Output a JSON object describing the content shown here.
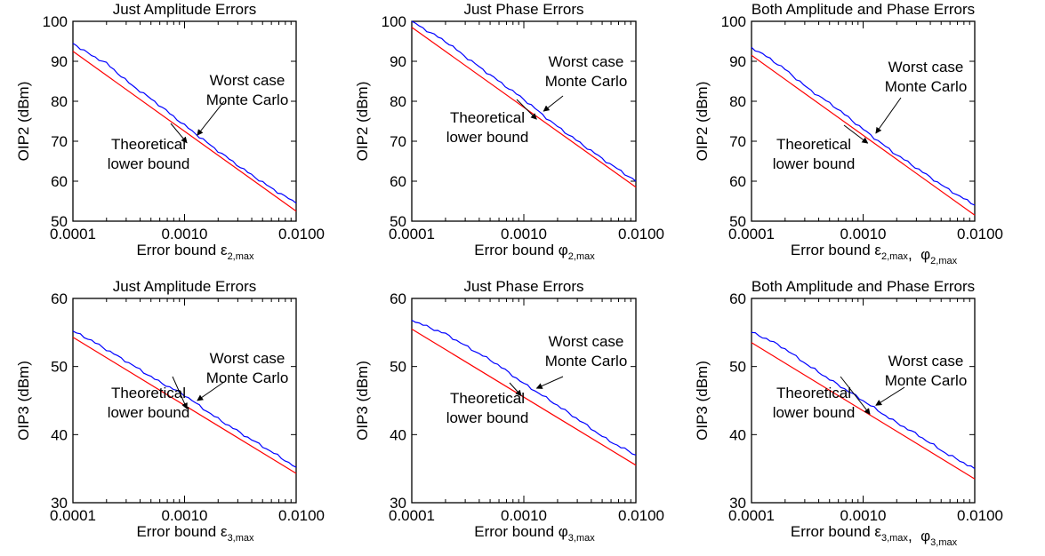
{
  "chart_data": [
    {
      "type": "line",
      "title": "Just Amplitude Errors",
      "xlabel": "Error bound ",
      "xlabel_symbols": [
        "ε"
      ],
      "xlabel_subs": [
        "2,max"
      ],
      "ylabel": "OIP2 (dBm)",
      "xscale": "log",
      "xlim": [
        0.0001,
        0.01
      ],
      "ylim": [
        50,
        100
      ],
      "xticks": [
        0.0001,
        0.001,
        0.01
      ],
      "xtick_labels": [
        "0.0001",
        "0.0010",
        "0.0100"
      ],
      "yticks": [
        50,
        60,
        70,
        80,
        90,
        100
      ],
      "ytick_labels": [
        "50",
        "60",
        "70",
        "80",
        "90",
        "100"
      ],
      "series": [
        {
          "color": "#ff0000",
          "x": [
            0.0001,
            0.01
          ],
          "y": [
            92.5,
            52.5
          ]
        },
        {
          "color": "#0000ff",
          "x": [
            0.0001,
            0.00014,
            0.0002,
            0.00032,
            0.00056,
            0.001,
            0.0018,
            0.0032,
            0.0056,
            0.01
          ],
          "y": [
            94.5,
            91.8,
            89.5,
            84.5,
            79.6,
            74.0,
            68.5,
            63.4,
            58.8,
            54.5
          ]
        }
      ],
      "annotations": [
        {
          "lines": [
            "Worst case",
            "Monte Carlo"
          ],
          "arrow_target": [
            0.0013,
            71.5
          ]
        },
        {
          "lines": [
            "Theoretical",
            "lower bound"
          ],
          "arrow_target": [
            0.00105,
            69.6
          ]
        }
      ]
    },
    {
      "type": "line",
      "title": "Just Phase Errors",
      "xlabel": "Error bound ",
      "xlabel_symbols": [
        "φ"
      ],
      "xlabel_subs": [
        "2,max"
      ],
      "ylabel": "OIP2 (dBm)",
      "xscale": "log",
      "xlim": [
        0.0001,
        0.01
      ],
      "ylim": [
        50,
        100
      ],
      "xticks": [
        0.0001,
        0.001,
        0.01
      ],
      "xtick_labels": [
        "0.0001",
        "0.0010",
        "0.0100"
      ],
      "yticks": [
        50,
        60,
        70,
        80,
        90,
        100
      ],
      "ytick_labels": [
        "50",
        "60",
        "70",
        "80",
        "90",
        "100"
      ],
      "series": [
        {
          "color": "#ff0000",
          "x": [
            0.0001,
            0.01
          ],
          "y": [
            98.5,
            58.5
          ]
        },
        {
          "color": "#0000ff",
          "x": [
            0.0001,
            0.00014,
            0.0002,
            0.00032,
            0.00056,
            0.001,
            0.0018,
            0.0032,
            0.0056,
            0.01
          ],
          "y": [
            100.0,
            97.5,
            95.0,
            90.6,
            85.6,
            80.5,
            74.6,
            69.5,
            64.7,
            60.0
          ]
        }
      ],
      "annotations": [
        {
          "lines": [
            "Worst case",
            "Monte Carlo"
          ],
          "arrow_target": [
            0.0015,
            77.5
          ]
        },
        {
          "lines": [
            "Theoretical",
            "lower bound"
          ],
          "arrow_target": [
            0.0013,
            75.5
          ]
        }
      ]
    },
    {
      "type": "line",
      "title": "Both Amplitude and Phase Errors",
      "xlabel": "Error bound ",
      "xlabel_symbols": [
        "ε",
        "φ"
      ],
      "xlabel_subs": [
        "2,max",
        "2,max"
      ],
      "ylabel": "OIP2 (dBm)",
      "xscale": "log",
      "xlim": [
        0.0001,
        0.01
      ],
      "ylim": [
        50,
        100
      ],
      "xticks": [
        0.0001,
        0.001,
        0.01
      ],
      "xtick_labels": [
        "0.0001",
        "0.0010",
        "0.0100"
      ],
      "yticks": [
        50,
        60,
        70,
        80,
        90,
        100
      ],
      "ytick_labels": [
        "50",
        "60",
        "70",
        "80",
        "90",
        "100"
      ],
      "series": [
        {
          "color": "#ff0000",
          "x": [
            0.0001,
            0.01
          ],
          "y": [
            91.5,
            51.5
          ]
        },
        {
          "color": "#0000ff",
          "x": [
            0.0001,
            0.00014,
            0.0002,
            0.00032,
            0.00056,
            0.001,
            0.0018,
            0.0032,
            0.0056,
            0.01
          ],
          "y": [
            93.5,
            91.0,
            88.0,
            83.2,
            78.6,
            73.0,
            67.5,
            62.8,
            58.2,
            54.0
          ]
        }
      ],
      "annotations": [
        {
          "lines": [
            "Worst case",
            "Monte Carlo"
          ],
          "arrow_target": [
            0.0013,
            72.0
          ]
        },
        {
          "lines": [
            "Theoretical",
            "lower bound"
          ],
          "arrow_target": [
            0.0011,
            69.5
          ]
        }
      ]
    },
    {
      "type": "line",
      "title": "Just Amplitude Errors",
      "xlabel": "Error bound ",
      "xlabel_symbols": [
        "ε"
      ],
      "xlabel_subs": [
        "3,max"
      ],
      "ylabel": "OIP3 (dBm)",
      "xscale": "log",
      "xlim": [
        0.0001,
        0.01
      ],
      "ylim": [
        30,
        60
      ],
      "xticks": [
        0.0001,
        0.001,
        0.01
      ],
      "xtick_labels": [
        "0.0001",
        "0.0010",
        "0.0100"
      ],
      "yticks": [
        30,
        40,
        50,
        60
      ],
      "ytick_labels": [
        "30",
        "40",
        "50",
        "60"
      ],
      "series": [
        {
          "color": "#ff0000",
          "x": [
            0.0001,
            0.01
          ],
          "y": [
            54.3,
            34.3
          ]
        },
        {
          "color": "#0000ff",
          "x": [
            0.0001,
            0.00014,
            0.0002,
            0.00032,
            0.00056,
            0.001,
            0.0018,
            0.0032,
            0.0056,
            0.01
          ],
          "y": [
            55.2,
            54.0,
            52.5,
            50.5,
            48.0,
            45.8,
            42.8,
            40.2,
            37.8,
            35.2
          ]
        }
      ],
      "annotations": [
        {
          "lines": [
            "Worst case",
            "Monte Carlo"
          ],
          "arrow_target": [
            0.0013,
            45.0
          ]
        },
        {
          "lines": [
            "Theoretical",
            "lower bound"
          ],
          "arrow_target": [
            0.00105,
            43.8
          ]
        }
      ]
    },
    {
      "type": "line",
      "title": "Just Phase Errors",
      "xlabel": "Error bound ",
      "xlabel_symbols": [
        "φ"
      ],
      "xlabel_subs": [
        "3,max"
      ],
      "ylabel": "OIP3 (dBm)",
      "xscale": "log",
      "xlim": [
        0.0001,
        0.01
      ],
      "ylim": [
        30,
        60
      ],
      "xticks": [
        0.0001,
        0.001,
        0.01
      ],
      "xtick_labels": [
        "0.0001",
        "0.0010",
        "0.0100"
      ],
      "yticks": [
        30,
        40,
        50,
        60
      ],
      "ytick_labels": [
        "30",
        "40",
        "50",
        "60"
      ],
      "series": [
        {
          "color": "#ff0000",
          "x": [
            0.0001,
            0.01
          ],
          "y": [
            55.5,
            35.5
          ]
        },
        {
          "color": "#0000ff",
          "x": [
            0.0001,
            0.00014,
            0.0002,
            0.00032,
            0.00056,
            0.001,
            0.0018,
            0.0032,
            0.0056,
            0.01
          ],
          "y": [
            56.8,
            55.8,
            54.8,
            52.8,
            50.5,
            47.5,
            44.8,
            42.0,
            39.2,
            37.0
          ]
        }
      ],
      "annotations": [
        {
          "lines": [
            "Worst case",
            "Monte Carlo"
          ],
          "arrow_target": [
            0.0013,
            46.8
          ]
        },
        {
          "lines": [
            "Theoretical",
            "lower bound"
          ],
          "arrow_target": [
            0.00095,
            45.7
          ]
        }
      ]
    },
    {
      "type": "line",
      "title": "Both Amplitude and Phase Errors",
      "xlabel": "Error bound ",
      "xlabel_symbols": [
        "ε",
        "φ"
      ],
      "xlabel_subs": [
        "3,max",
        "3,max"
      ],
      "ylabel": "OIP3 (dBm)",
      "xscale": "log",
      "xlim": [
        0.0001,
        0.01
      ],
      "ylim": [
        30,
        60
      ],
      "xticks": [
        0.0001,
        0.001,
        0.01
      ],
      "xtick_labels": [
        "0.0001",
        "0.0010",
        "0.0100"
      ],
      "yticks": [
        30,
        40,
        50,
        60
      ],
      "ytick_labels": [
        "30",
        "40",
        "50",
        "60"
      ],
      "series": [
        {
          "color": "#ff0000",
          "x": [
            0.0001,
            0.01
          ],
          "y": [
            53.5,
            33.5
          ]
        },
        {
          "color": "#0000ff",
          "x": [
            0.0001,
            0.00014,
            0.0002,
            0.00032,
            0.00056,
            0.001,
            0.0018,
            0.0032,
            0.0056,
            0.01
          ],
          "y": [
            55.0,
            54.0,
            52.6,
            50.2,
            47.6,
            45.0,
            42.2,
            39.8,
            37.2,
            35.0
          ]
        }
      ],
      "annotations": [
        {
          "lines": [
            "Worst case",
            "Monte Carlo"
          ],
          "arrow_target": [
            0.0013,
            44.3
          ]
        },
        {
          "lines": [
            "Theoretical",
            "lower bound"
          ],
          "arrow_target": [
            0.00115,
            43.0
          ]
        }
      ]
    }
  ]
}
